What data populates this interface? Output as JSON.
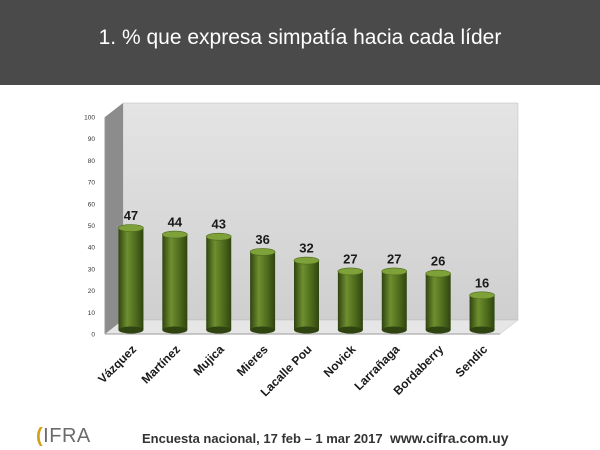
{
  "header": {
    "title": "1.   % que expresa simpatía hacia cada líder"
  },
  "chart_data": {
    "type": "bar",
    "categories": [
      "Vázquez",
      "Martínez",
      "Mujica",
      "Mieres",
      "Lacalle Pou",
      "Novick",
      "Larrañaga",
      "Bordaberry",
      "Sendic"
    ],
    "values": [
      47,
      44,
      43,
      36,
      32,
      27,
      27,
      26,
      16
    ],
    "ylim": [
      0,
      100
    ],
    "yticks": [
      0,
      10,
      20,
      30,
      40,
      50,
      60,
      70,
      80,
      90,
      100
    ],
    "grid": false,
    "legend": "none",
    "style": "3d-cylinder",
    "colors": {
      "bar_light": "#6f8f2f",
      "bar_mid": "#4d6a1c",
      "bar_dark": "#2f4410",
      "bar_top": "#7fa13a",
      "back_wall": "#d9d9d9",
      "side_wall": "#8c8c8c",
      "floor": "#e6e6e6"
    }
  },
  "footer": {
    "logo_text": "CIFRA",
    "caption": "Encuesta nacional,  17 feb – 1 mar 2017",
    "url": "www.cifra.com.uy"
  }
}
